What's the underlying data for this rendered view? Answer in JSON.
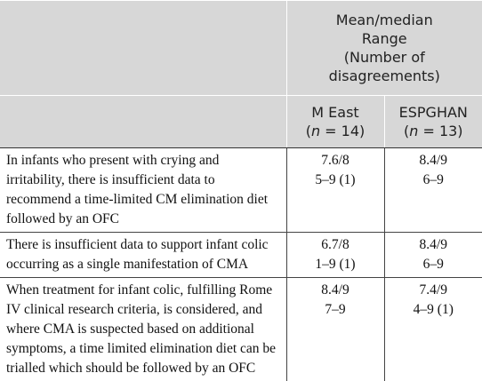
{
  "header": {
    "group_title": [
      "Mean/median",
      "Range",
      "(Number of",
      "disagreements)"
    ],
    "columns": [
      {
        "name": "M East",
        "pre": "(",
        "var": "n",
        "post": " = 14)"
      },
      {
        "name": "ESPGHAN",
        "pre": "(",
        "var": "n",
        "post": " = 13)"
      }
    ]
  },
  "table": {
    "rows": [
      [
        "In infants who present with crying and irritability, there is insufficient data to recommend a time-limited CM elimination diet followed by an OFC",
        [
          "7.6/8",
          "5–9 (1)"
        ],
        [
          "8.4/9",
          "6–9"
        ]
      ],
      [
        "There is insufficient data to support infant colic occurring as a single manifestation of CMA",
        [
          "6.7/8",
          "1–9 (1)"
        ],
        [
          "8.4/9",
          "6–9"
        ]
      ],
      [
        "When treatment for infant colic, fulfilling Rome IV clinical research criteria, is considered, and where CMA is suspected based on additional symptoms, a time limited elimination diet can be trialled which should be followed by an OFC",
        [
          "8.4/9",
          "7–9"
        ],
        [
          "7.4/9",
          "4–9 (1)"
        ]
      ]
    ]
  }
}
